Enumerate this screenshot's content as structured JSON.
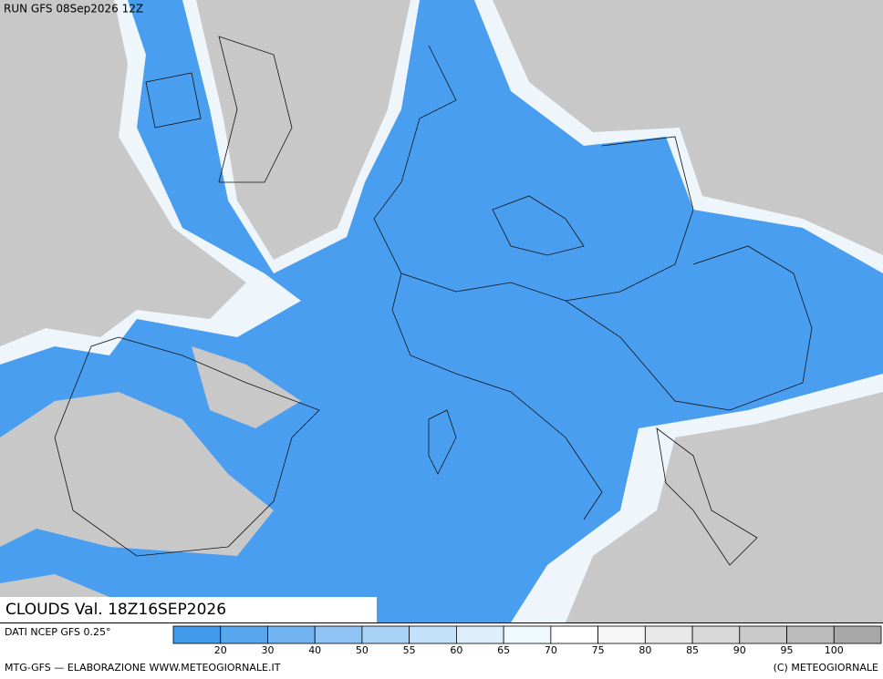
{
  "header": {
    "title": "RUN GFS 08Sep2026 12Z"
  },
  "map": {
    "label": "CLOUDS Val. 18Z16SEP2026"
  },
  "legend": {
    "source": "DATI NCEP GFS 0.25°",
    "colors": [
      "#4099eb",
      "#57a6ee",
      "#72b4f1",
      "#8ec3f4",
      "#a9d2f7",
      "#c3e1f9",
      "#ddeffc",
      "#effaff",
      "#ffffff",
      "#f6f6f6",
      "#e8e8e8",
      "#d9d9d9",
      "#cacaca",
      "#bcbcbc",
      "#a9a9a9"
    ],
    "labels": [
      20,
      30,
      40,
      50,
      55,
      60,
      65,
      70,
      75,
      80,
      85,
      90,
      95,
      100
    ]
  },
  "footer": {
    "left": "MTG-GFS — ELABORAZIONE WWW.METEOGIORNALE.IT",
    "right": "(C) METEOGIORNALE"
  }
}
